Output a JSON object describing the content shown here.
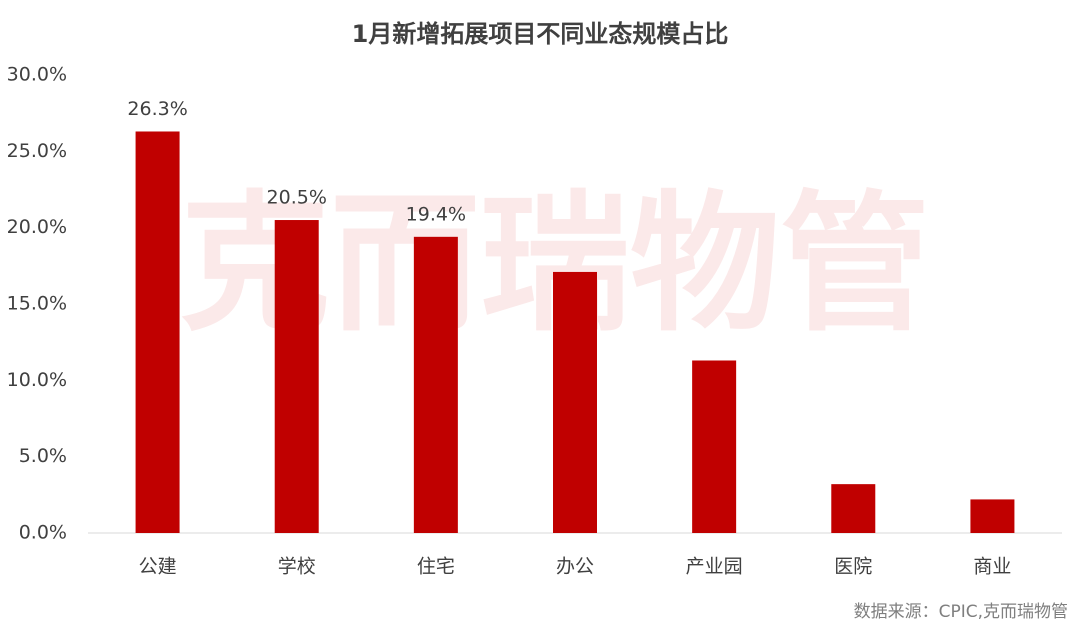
{
  "chart_data": {
    "type": "bar",
    "title": "1月新增拓展项目不同业态规模占比",
    "categories": [
      "公建",
      "学校",
      "住宅",
      "办公",
      "产业园",
      "医院",
      "商业"
    ],
    "values": [
      26.3,
      20.5,
      19.4,
      17.1,
      11.3,
      3.2,
      2.2
    ],
    "value_labels": [
      "26.3%",
      "20.5%",
      "19.4%",
      null,
      null,
      null,
      null
    ],
    "color": "#c00000",
    "ylim": [
      0,
      30
    ],
    "yticks": [
      {
        "value": 0,
        "label": "0.0%"
      },
      {
        "value": 5,
        "label": "5.0%"
      },
      {
        "value": 10,
        "label": "10.0%"
      },
      {
        "value": 15,
        "label": "15.0%"
      },
      {
        "value": 20,
        "label": "20.0%"
      },
      {
        "value": 25,
        "label": "25.0%"
      },
      {
        "value": 30,
        "label": "30.0%"
      }
    ],
    "grid": false,
    "watermark": "克而瑞物管",
    "source": "数据来源：CPIC,克而瑞物管"
  }
}
